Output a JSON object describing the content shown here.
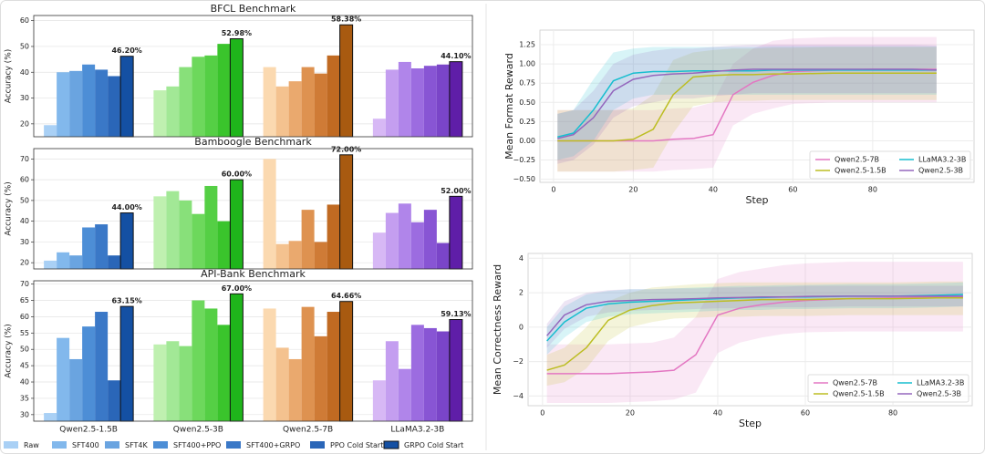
{
  "chart_data": [
    {
      "type": "grouped_bar",
      "categories": [
        "Qwen2.5-1.5B",
        "Qwen2.5-3B",
        "Qwen2.5-7B",
        "LLaMA3.2-3B"
      ],
      "series": [
        {
          "name": "Raw",
          "color": "#a9d0f5"
        },
        {
          "name": "SFT400",
          "color": "#82b8ec"
        },
        {
          "name": "SFT4K",
          "color": "#6aa4e0"
        },
        {
          "name": "SFT400+PPO",
          "color": "#4d8ed6"
        },
        {
          "name": "SFT400+GRPO",
          "color": "#3a78c7"
        },
        {
          "name": "PPO Cold Start",
          "color": "#2a66b8"
        },
        {
          "name": "GRPO Cold Start",
          "color": "#1450a3"
        }
      ],
      "group_colors": [
        [
          "#a9d0f5",
          "#82b8ec",
          "#6aa4e0",
          "#4d8ed6",
          "#3a78c7",
          "#2a66b8",
          "#1450a3"
        ],
        [
          "#bff0b0",
          "#a2e896",
          "#88e07a",
          "#6dd85c",
          "#55cf45",
          "#3ac42c",
          "#1fb51b"
        ],
        [
          "#fbd9b0",
          "#f4c28f",
          "#eaa96e",
          "#de9250",
          "#cf7b36",
          "#c06a22",
          "#a85a10"
        ],
        [
          "#d7b8f5",
          "#c49ef0",
          "#b085ea",
          "#9c6ce0",
          "#8855d4",
          "#7a45c8",
          "#5f1ea8"
        ]
      ],
      "grid": true,
      "panels": [
        {
          "title": "BFCL Benchmark",
          "ylabel": "Accuracy (%)",
          "ylim": [
            15,
            62
          ],
          "yticks": [
            20,
            30,
            40,
            50,
            60
          ],
          "series": [
            {
              "values": [
                19.5,
                33,
                42,
                22
              ]
            },
            {
              "values": [
                40,
                34.5,
                34.5,
                41
              ]
            },
            {
              "values": [
                40.5,
                42,
                36.5,
                44
              ]
            },
            {
              "values": [
                43,
                46,
                42,
                41.5
              ]
            },
            {
              "values": [
                41,
                46.5,
                39.5,
                42.5
              ]
            },
            {
              "values": [
                38.5,
                51,
                46.5,
                43
              ]
            },
            {
              "values": [
                46.2,
                52.98,
                58.38,
                44.1
              ],
              "value_labels": [
                "46.20%",
                "52.98%",
                "58.38%",
                "44.10%"
              ]
            }
          ]
        },
        {
          "title": "Bamboogle Benchmark",
          "ylabel": "Accuracy (%)",
          "ylim": [
            17,
            75
          ],
          "yticks": [
            20,
            30,
            40,
            50,
            60,
            70
          ],
          "series": [
            {
              "values": [
                21,
                52,
                70,
                34.5
              ]
            },
            {
              "values": [
                25,
                54.5,
                29,
                44
              ]
            },
            {
              "values": [
                23.5,
                50,
                30.5,
                48.5
              ]
            },
            {
              "values": [
                37,
                43.5,
                45.5,
                39.5
              ]
            },
            {
              "values": [
                38.5,
                57,
                30,
                45.5
              ]
            },
            {
              "values": [
                23.5,
                40,
                48,
                29.5
              ]
            },
            {
              "values": [
                44,
                60,
                72,
                52
              ],
              "value_labels": [
                "44.00%",
                "60.00%",
                "72.00%",
                "52.00%"
              ]
            }
          ]
        },
        {
          "title": "API-Bank Benchmark",
          "ylabel": "Accuracy (%)",
          "ylim": [
            28,
            71
          ],
          "yticks": [
            30,
            35,
            40,
            45,
            50,
            55,
            60,
            65,
            70
          ],
          "series": [
            {
              "values": [
                30.5,
                51.5,
                62.5,
                40.5
              ]
            },
            {
              "values": [
                53.5,
                52.5,
                50.5,
                52.5
              ]
            },
            {
              "values": [
                47,
                51,
                47,
                44
              ]
            },
            {
              "values": [
                57,
                65,
                63,
                57.5
              ]
            },
            {
              "values": [
                61.5,
                62.5,
                54,
                56.5
              ]
            },
            {
              "values": [
                40.5,
                57.5,
                61.5,
                55.5
              ]
            },
            {
              "values": [
                63.15,
                67,
                64.66,
                59.13
              ],
              "value_labels": [
                "63.15%",
                "67.00%",
                "64.66%",
                "59.13%"
              ]
            }
          ]
        }
      ]
    },
    {
      "type": "line",
      "xlabel": "Step",
      "ylabel": "Mean Format Reward",
      "grid": true,
      "legend": "lower right",
      "xlim": [
        -3.4,
        105.4
      ],
      "ylim": [
        -0.54,
        1.44
      ],
      "xticks": [
        0,
        20,
        40,
        60,
        80
      ],
      "yticks": [
        {
          "value": -0.5,
          "label": "−0.50"
        },
        {
          "value": -0.25,
          "label": "−0.25"
        },
        {
          "value": 0,
          "label": "0.00"
        },
        0.25,
        {
          "value": 0.5,
          "label": "0.50"
        },
        0.75,
        {
          "value": 1,
          "label": "1.00"
        },
        1.25
      ],
      "x": [
        1,
        5,
        10,
        15,
        20,
        25,
        30,
        35,
        40,
        45,
        50,
        55,
        60,
        70,
        80,
        90,
        96
      ],
      "series": [
        {
          "name": "Qwen2.5-7B",
          "color": "#e377c2",
          "values": [
            0,
            0,
            0,
            0,
            0,
            0,
            0.02,
            0.03,
            0.08,
            0.6,
            0.76,
            0.85,
            0.9,
            0.92,
            0.93,
            0.93,
            0.93
          ],
          "lower": [
            -0.4,
            -0.4,
            -0.4,
            -0.4,
            -0.4,
            -0.4,
            -0.38,
            -0.37,
            -0.35,
            0.2,
            0.35,
            0.42,
            0.48,
            0.5,
            0.5,
            0.5,
            0.5
          ],
          "upper": [
            0.4,
            0.4,
            0.4,
            0.4,
            0.4,
            0.4,
            0.42,
            0.43,
            0.5,
            1.0,
            1.2,
            1.3,
            1.33,
            1.35,
            1.35,
            1.35,
            1.35
          ]
        },
        {
          "name": "Qwen2.5-1.5B",
          "color": "#bcbd22",
          "values": [
            0,
            0,
            0,
            0,
            0.02,
            0.15,
            0.6,
            0.83,
            0.85,
            0.86,
            0.86,
            0.87,
            0.87,
            0.88,
            0.88,
            0.88,
            0.88
          ],
          "lower": [
            -0.4,
            -0.4,
            -0.4,
            -0.4,
            -0.38,
            -0.35,
            0.1,
            0.45,
            0.5,
            0.52,
            0.52,
            0.53,
            0.53,
            0.53,
            0.53,
            0.53,
            0.53
          ],
          "upper": [
            0.4,
            0.4,
            0.4,
            0.4,
            0.42,
            0.6,
            1.05,
            1.15,
            1.18,
            1.2,
            1.2,
            1.21,
            1.21,
            1.22,
            1.22,
            1.22,
            1.22
          ]
        },
        {
          "name": "LLaMA3.2-3B",
          "color": "#17becf",
          "values": [
            0.05,
            0.1,
            0.4,
            0.78,
            0.88,
            0.9,
            0.9,
            0.91,
            0.91,
            0.91,
            0.91,
            0.92,
            0.92,
            0.92,
            0.92,
            0.92,
            0.92
          ],
          "lower": [
            -0.25,
            -0.2,
            0,
            0.4,
            0.55,
            0.6,
            0.6,
            0.6,
            0.6,
            0.6,
            0.6,
            0.6,
            0.6,
            0.6,
            0.6,
            0.6,
            0.6
          ],
          "upper": [
            0.35,
            0.4,
            0.8,
            1.15,
            1.2,
            1.22,
            1.22,
            1.22,
            1.22,
            1.22,
            1.22,
            1.23,
            1.23,
            1.23,
            1.23,
            1.23,
            1.23
          ]
        },
        {
          "name": "Qwen2.5-3B",
          "color": "#9467bd",
          "values": [
            0.03,
            0.08,
            0.3,
            0.65,
            0.8,
            0.85,
            0.87,
            0.88,
            0.9,
            0.92,
            0.93,
            0.93,
            0.93,
            0.93,
            0.93,
            0.93,
            0.92
          ],
          "lower": [
            -0.3,
            -0.25,
            -0.05,
            0.3,
            0.45,
            0.5,
            0.55,
            0.55,
            0.58,
            0.6,
            0.62,
            0.62,
            0.62,
            0.62,
            0.62,
            0.62,
            0.62
          ],
          "upper": [
            0.35,
            0.4,
            0.65,
            1.0,
            1.12,
            1.17,
            1.2,
            1.2,
            1.22,
            1.24,
            1.25,
            1.25,
            1.25,
            1.25,
            1.25,
            1.25,
            1.24
          ]
        }
      ]
    },
    {
      "type": "line",
      "xlabel": "Step",
      "ylabel": "Mean Correctness Reward",
      "grid": true,
      "legend": "lower right",
      "xlim": [
        -3.3,
        98.1
      ],
      "ylim": [
        -4.56,
        4.28
      ],
      "xticks": [
        0,
        20,
        40,
        60,
        80
      ],
      "yticks": [
        {
          "value": -4,
          "label": "−4"
        },
        {
          "value": -2,
          "label": "−2"
        },
        0,
        2,
        4
      ],
      "x": [
        1,
        5,
        10,
        15,
        20,
        25,
        30,
        35,
        40,
        45,
        50,
        55,
        60,
        70,
        80,
        90,
        96
      ],
      "series": [
        {
          "name": "Qwen2.5-7B",
          "color": "#e377c2",
          "values": [
            -2.7,
            -2.7,
            -2.7,
            -2.7,
            -2.65,
            -2.6,
            -2.5,
            -1.6,
            0.7,
            1.1,
            1.3,
            1.45,
            1.55,
            1.65,
            1.7,
            1.75,
            1.75
          ],
          "lower": [
            -4.4,
            -4.4,
            -4.4,
            -4.4,
            -4.35,
            -4.3,
            -4.2,
            -3.8,
            -1.5,
            -0.9,
            -0.6,
            -0.4,
            -0.3,
            -0.25,
            -0.25,
            -0.25,
            -0.25
          ],
          "upper": [
            -1.0,
            -1.0,
            -1.0,
            -1.0,
            -0.95,
            -0.9,
            -0.6,
            0.6,
            2.8,
            3.2,
            3.4,
            3.6,
            3.7,
            3.8,
            3.8,
            3.8,
            3.8
          ]
        },
        {
          "name": "Qwen2.5-1.5B",
          "color": "#bcbd22",
          "values": [
            -2.5,
            -2.2,
            -1.2,
            0.4,
            1.0,
            1.25,
            1.4,
            1.45,
            1.5,
            1.55,
            1.6,
            1.6,
            1.6,
            1.65,
            1.65,
            1.7,
            1.7
          ],
          "lower": [
            -3.4,
            -3.2,
            -2.4,
            -0.8,
            0,
            0.3,
            0.5,
            0.55,
            0.6,
            0.6,
            0.65,
            0.65,
            0.65,
            0.7,
            0.7,
            0.7,
            0.7
          ],
          "upper": [
            -1.6,
            -1.2,
            0,
            1.5,
            2.0,
            2.3,
            2.4,
            2.5,
            2.55,
            2.6,
            2.6,
            2.6,
            2.6,
            2.6,
            2.6,
            2.65,
            2.65
          ]
        },
        {
          "name": "LLaMA3.2-3B",
          "color": "#17becf",
          "values": [
            -0.8,
            0.3,
            1.1,
            1.35,
            1.45,
            1.5,
            1.55,
            1.6,
            1.65,
            1.7,
            1.72,
            1.75,
            1.75,
            1.8,
            1.8,
            1.85,
            1.9
          ],
          "lower": [
            -1.6,
            -0.6,
            0.3,
            0.6,
            0.75,
            0.8,
            0.85,
            0.9,
            0.95,
            1.0,
            1.0,
            1.05,
            1.05,
            1.1,
            1.1,
            1.15,
            1.2
          ],
          "upper": [
            0,
            1.2,
            1.9,
            2.1,
            2.2,
            2.2,
            2.25,
            2.3,
            2.35,
            2.4,
            2.4,
            2.45,
            2.45,
            2.5,
            2.5,
            2.55,
            2.6
          ]
        },
        {
          "name": "Qwen2.5-3B",
          "color": "#9467bd",
          "values": [
            -0.5,
            0.7,
            1.3,
            1.5,
            1.55,
            1.6,
            1.62,
            1.65,
            1.7,
            1.72,
            1.75,
            1.75,
            1.78,
            1.8,
            1.8,
            1.8,
            1.8
          ],
          "lower": [
            -1.2,
            -0.1,
            0.6,
            0.85,
            0.95,
            1.0,
            1.0,
            1.05,
            1.1,
            1.1,
            1.15,
            1.15,
            1.15,
            1.2,
            1.2,
            1.2,
            1.2
          ],
          "upper": [
            0.2,
            1.5,
            2.0,
            2.15,
            2.2,
            2.2,
            2.25,
            2.25,
            2.3,
            2.3,
            2.35,
            2.35,
            2.4,
            2.4,
            2.4,
            2.4,
            2.4
          ]
        }
      ]
    }
  ]
}
